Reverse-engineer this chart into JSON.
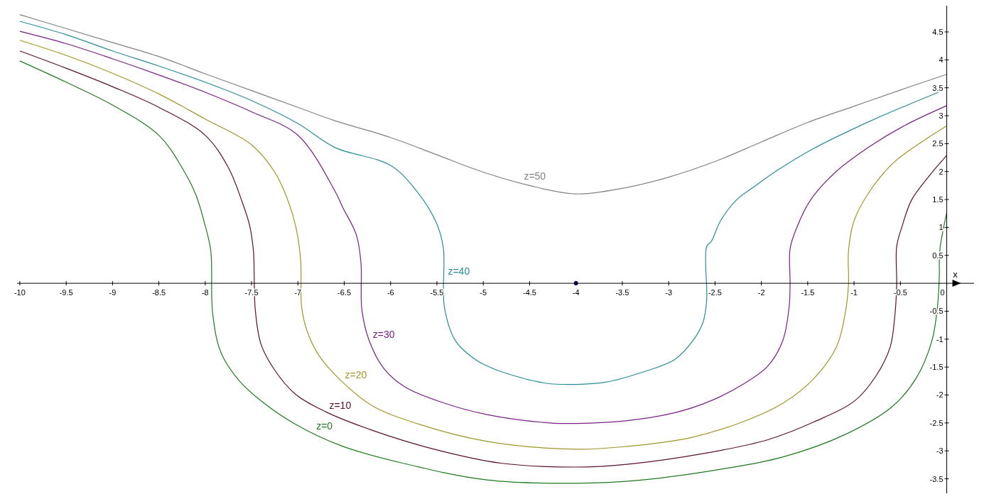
{
  "chart_data": {
    "type": "line",
    "xlabel": "x",
    "xlim": [
      -10.03,
      0.31
    ],
    "ylim": [
      -3.76,
      4.97
    ],
    "xticks": [
      -10,
      -9.5,
      -9,
      -8.5,
      -8,
      -7.5,
      -7,
      -6.5,
      -6,
      -5.5,
      -5,
      -4.5,
      -4,
      -3.5,
      -3,
      -2.5,
      -2,
      -1.5,
      -1,
      -0.5,
      0
    ],
    "yticks": [
      -3.5,
      -3,
      -2.5,
      -2,
      -1.5,
      -1,
      -0.5,
      0.5,
      1,
      1.5,
      2,
      2.5,
      3,
      3.5,
      4,
      4.5
    ],
    "series": [
      {
        "color": "#808080",
        "x": [
          -10,
          -9.5,
          -9,
          -8.5,
          -8,
          -7.5,
          -7,
          -6.6,
          -6,
          -5.5,
          -5,
          -4.5,
          -4,
          -3.5,
          -3,
          -2.5,
          -2,
          -1.5,
          -1,
          -0.5,
          0
        ],
        "values": [
          4.81,
          4.56,
          4.31,
          4.06,
          3.75,
          3.45,
          3.15,
          2.91,
          2.61,
          2.3,
          1.99,
          1.75,
          1.6,
          1.7,
          1.9,
          2.18,
          2.53,
          2.88,
          3.17,
          3.46,
          3.74
        ]
      },
      {
        "color": "#2b8c96",
        "x": [
          -10,
          -9.5,
          -9,
          -8.5,
          -8,
          -7.5,
          -7,
          -6.6,
          -6,
          -5.7,
          -5.5,
          -5.43,
          -5.42,
          -5.3,
          -5.1,
          -4.96,
          -4.81,
          -4.32,
          -4,
          -3.68,
          -3.28,
          -2.94,
          -2.74,
          -2.63,
          -2.59,
          -2.59,
          -2.54,
          -2.44,
          -2.27,
          -2.07,
          -1.82,
          -1.45,
          -0.83,
          -0.09
        ],
        "values": [
          4.69,
          4.45,
          4.16,
          3.89,
          3.6,
          3.27,
          2.86,
          2.43,
          2.11,
          1.61,
          1.06,
          0.62,
          -0.42,
          -1.03,
          -1.35,
          -1.48,
          -1.58,
          -1.79,
          -1.81,
          -1.77,
          -1.59,
          -1.37,
          -1.03,
          -0.7,
          -0.31,
          0.66,
          0.75,
          1.12,
          1.49,
          1.74,
          2.03,
          2.4,
          2.9,
          3.42
        ]
      },
      {
        "color": "#7a1f86",
        "x": [
          -10,
          -9.5,
          -9,
          -8.5,
          -8,
          -7.5,
          -7,
          -6.6,
          -6.52,
          -6.37,
          -6.32,
          -6.31,
          -6.23,
          -6.07,
          -5.84,
          -5.43,
          -4.96,
          -4.28,
          -4,
          -3.45,
          -2.94,
          -2.54,
          -2.2,
          -1.93,
          -1.77,
          -1.7,
          -1.69,
          -1.69,
          -1.62,
          -1.47,
          -1.2,
          -0.83,
          -0.46,
          0
        ],
        "values": [
          4.51,
          4.29,
          4.02,
          3.73,
          3.42,
          3.07,
          2.65,
          1.65,
          1.37,
          0.87,
          0.37,
          -0.47,
          -1.03,
          -1.53,
          -1.86,
          -2.14,
          -2.35,
          -2.5,
          -2.51,
          -2.46,
          -2.32,
          -2.1,
          -1.81,
          -1.48,
          -1.03,
          -0.42,
          0,
          0.62,
          0.99,
          1.49,
          1.99,
          2.45,
          2.82,
          3.18
        ]
      },
      {
        "color": "#a0952a",
        "x": [
          -10,
          -9.5,
          -9,
          -8.5,
          -8,
          -7.5,
          -7.25,
          -7.1,
          -7.02,
          -6.97,
          -6.96,
          -6.9,
          -6.77,
          -6.53,
          -6.2,
          -5.7,
          -4.96,
          -4,
          -3.45,
          -2.78,
          -2.2,
          -1.77,
          -1.43,
          -1.19,
          -1.1,
          -1.06,
          -1.06,
          -1,
          -0.83,
          -0.58,
          -0.28,
          0
        ],
        "values": [
          4.35,
          4.08,
          3.76,
          3.39,
          2.94,
          2.48,
          1.99,
          1.45,
          0.99,
          0.41,
          -0.42,
          -0.86,
          -1.3,
          -1.75,
          -2.19,
          -2.52,
          -2.83,
          -2.97,
          -2.92,
          -2.77,
          -2.48,
          -2.15,
          -1.7,
          -1.14,
          -0.58,
          -0.03,
          0.58,
          1.12,
          1.65,
          2.15,
          2.52,
          2.82
        ]
      },
      {
        "color": "#5a1030",
        "x": [
          -10,
          -9.5,
          -9,
          -8.5,
          -8,
          -7.75,
          -7.6,
          -7.52,
          -7.48,
          -7.46,
          -7.4,
          -7.26,
          -7.03,
          -6.7,
          -6.2,
          -5.53,
          -4.81,
          -4,
          -3.45,
          -2.6,
          -1.93,
          -1.43,
          -0.99,
          -0.76,
          -0.61,
          -0.56,
          -0.54,
          -0.54,
          -0.48,
          -0.38,
          -0.2,
          0
        ],
        "values": [
          4.16,
          3.85,
          3.52,
          3.15,
          2.65,
          2.07,
          1.45,
          1.03,
          0.58,
          -0.47,
          -1.08,
          -1.53,
          -1.98,
          -2.3,
          -2.63,
          -2.97,
          -3.22,
          -3.29,
          -3.24,
          -3.04,
          -2.8,
          -2.48,
          -2.1,
          -1.65,
          -1.14,
          -0.58,
          -0.03,
          0.66,
          1.03,
          1.49,
          1.9,
          2.29
        ]
      },
      {
        "color": "#1f7a1f",
        "x": [
          -10,
          -9.5,
          -9,
          -8.5,
          -8.25,
          -8.1,
          -8,
          -7.94,
          -7.92,
          -7.83,
          -7.63,
          -7.37,
          -7.03,
          -6.53,
          -5.87,
          -4.96,
          -4,
          -3.28,
          -2.44,
          -1.77,
          -1.1,
          -0.59,
          -0.33,
          -0.16,
          -0.1,
          -0.08,
          -0.08,
          -0.07,
          -0.03,
          0
        ],
        "values": [
          3.98,
          3.6,
          3.19,
          2.65,
          2.07,
          1.58,
          1.03,
          0.58,
          -0.53,
          -1.24,
          -1.75,
          -2.14,
          -2.52,
          -2.91,
          -3.22,
          -3.52,
          -3.58,
          -3.52,
          -3.33,
          -3.11,
          -2.71,
          -2.21,
          -1.7,
          -1.03,
          -0.42,
          0.14,
          0.41,
          0.66,
          1.03,
          1.26
        ]
      },
      {
        "type": "scatter",
        "marker": "circle",
        "color": "#000066",
        "x": [
          -4
        ],
        "values": [
          0
        ]
      }
    ],
    "annotations": [
      {
        "text": "z=50",
        "x": -4.6,
        "y": 1.8
      },
      {
        "text": "z=40",
        "x": -5.42,
        "y": 0.1
      },
      {
        "text": "z=30",
        "x": -6.23,
        "y": -1.03
      },
      {
        "text": "z=20",
        "x": -6.53,
        "y": -1.75
      },
      {
        "text": "z=10",
        "x": -6.7,
        "y": -2.3
      },
      {
        "text": "z=0",
        "x": -6.84,
        "y": -2.67
      }
    ]
  }
}
